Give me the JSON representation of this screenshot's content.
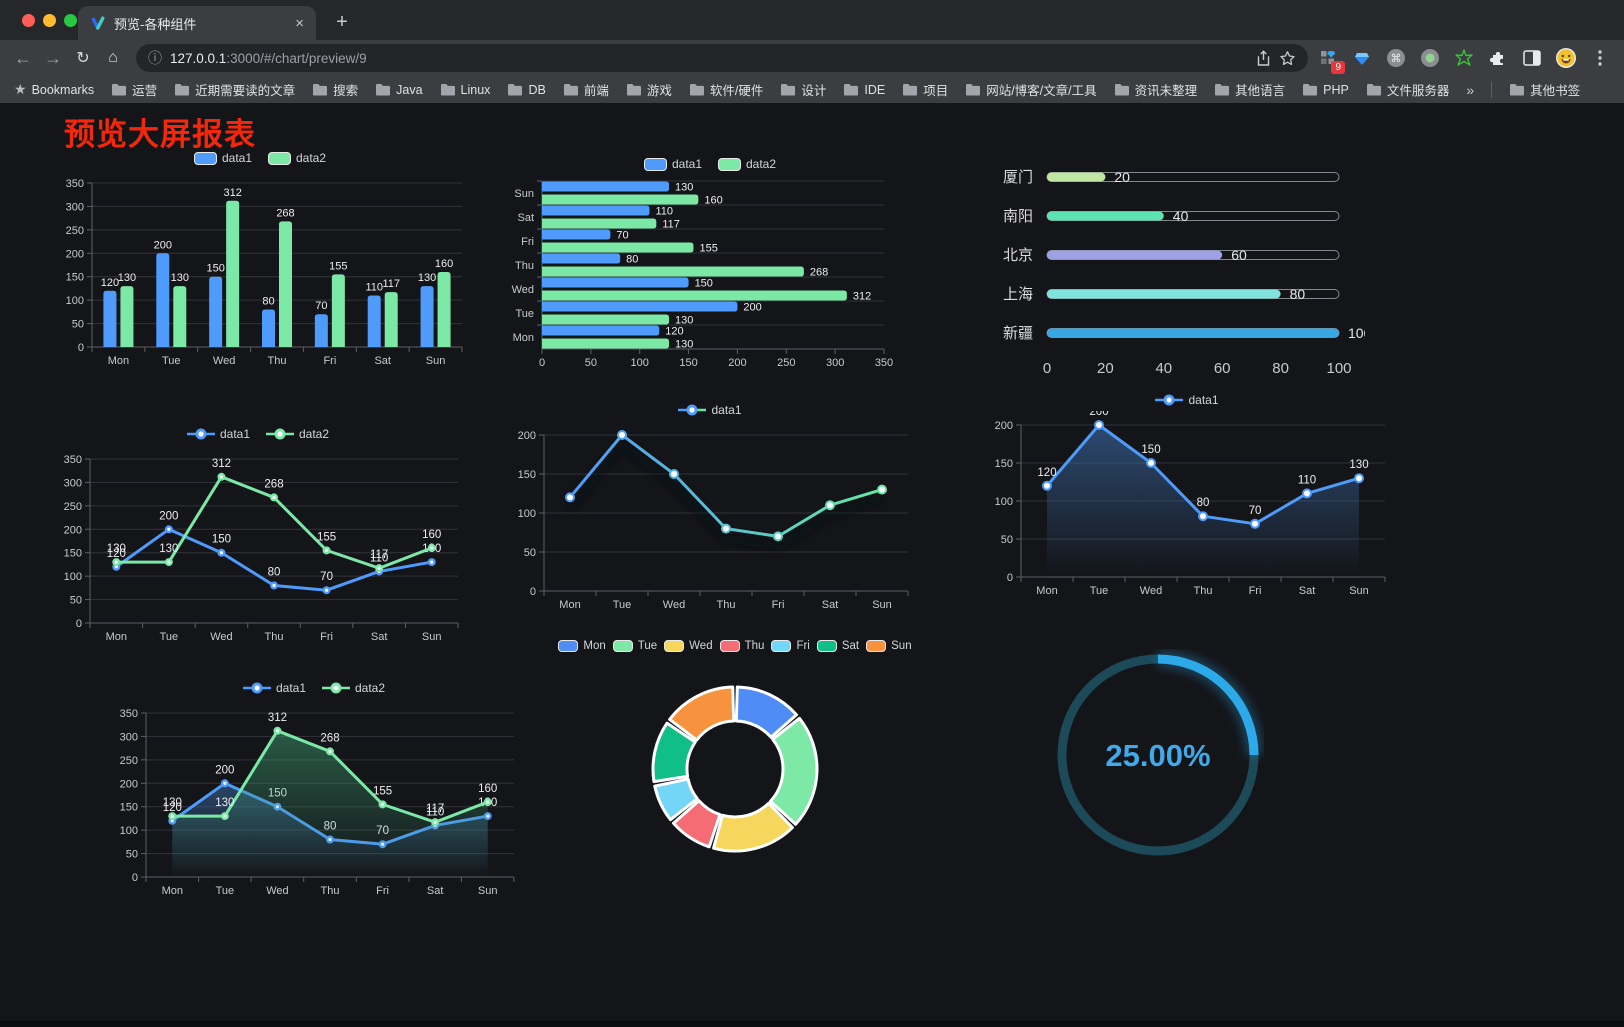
{
  "browser": {
    "tab_title": "预览-各种组件",
    "tab_close_glyph": "×",
    "new_tab_glyph": "+",
    "url_host": "127.0.0.1",
    "url_rest": ":3000/#/chart/preview/9",
    "bookmarks_label": "Bookmarks",
    "bookmarks": [
      "运营",
      "近期需要读的文章",
      "搜索",
      "Java",
      "Linux",
      "DB",
      "前端",
      "游戏",
      "软件/硬件",
      "设计",
      "IDE",
      "项目",
      "网站/博客/文章/工具",
      "资讯未整理",
      "其他语言",
      "PHP",
      "文件服务器"
    ],
    "bookmarks_overflow_glyph": "»",
    "other_bookmarks_label": "其他书签",
    "extension_badge": "9"
  },
  "page": {
    "title": "预览大屏报表",
    "title_color": "#f5270b",
    "background": "#141519"
  },
  "chart_data": [
    {
      "mount": "c1",
      "type": "bar",
      "categories": [
        "Mon",
        "Tue",
        "Wed",
        "Thu",
        "Fri",
        "Sat",
        "Sun"
      ],
      "series": [
        {
          "name": "data1",
          "color": "#4E9BFB",
          "values": [
            120,
            200,
            150,
            80,
            70,
            110,
            130
          ]
        },
        {
          "name": "data2",
          "color": "#7BE8A6",
          "values": [
            130,
            130,
            312,
            268,
            155,
            117,
            160
          ]
        }
      ],
      "ylim": [
        0,
        350
      ],
      "ystep": 50,
      "legend_position": "top",
      "grid": true
    },
    {
      "mount": "c2",
      "type": "hbar",
      "categories": [
        "Mon",
        "Tue",
        "Wed",
        "Thu",
        "Fri",
        "Sat",
        "Sun"
      ],
      "series": [
        {
          "name": "data1",
          "color": "#4E9BFB",
          "values": [
            120,
            200,
            150,
            80,
            70,
            110,
            130
          ]
        },
        {
          "name": "data2",
          "color": "#7BE8A6",
          "values": [
            130,
            130,
            312,
            268,
            155,
            117,
            160
          ]
        }
      ],
      "xlim": [
        0,
        350
      ],
      "xstep": 50,
      "legend_position": "top"
    },
    {
      "mount": "c3",
      "type": "progress",
      "xlim": [
        0,
        100
      ],
      "xticks": [
        0,
        20,
        40,
        60,
        80,
        100
      ],
      "items": [
        {
          "label": "厦门",
          "value": 20,
          "color": "#C0E8A2"
        },
        {
          "label": "南阳",
          "value": 40,
          "color": "#5CE3B1"
        },
        {
          "label": "北京",
          "value": 60,
          "color": "#9EA2E4"
        },
        {
          "label": "上海",
          "value": 80,
          "color": "#81E3DD"
        },
        {
          "label": "新疆",
          "value": 100,
          "color": "#39A8E2"
        }
      ]
    },
    {
      "mount": "c4",
      "type": "line",
      "categories": [
        "Mon",
        "Tue",
        "Wed",
        "Thu",
        "Fri",
        "Sat",
        "Sun"
      ],
      "series": [
        {
          "name": "data1",
          "color": "#4E9BFB",
          "values": [
            120,
            200,
            150,
            80,
            70,
            110,
            130
          ]
        },
        {
          "name": "data2",
          "color": "#7BE8A6",
          "values": [
            130,
            130,
            312,
            268,
            155,
            117,
            160
          ]
        }
      ],
      "ylim": [
        0,
        350
      ],
      "ystep": 50,
      "show_labels": true,
      "marker": "solid"
    },
    {
      "mount": "c5",
      "type": "line",
      "categories": [
        "Mon",
        "Tue",
        "Wed",
        "Thu",
        "Fri",
        "Sat",
        "Sun"
      ],
      "series": [
        {
          "name": "data1",
          "gradient": [
            "#4E9BFB",
            "#65E7A3"
          ],
          "values": [
            120,
            200,
            150,
            80,
            70,
            110,
            130
          ]
        }
      ],
      "ylim": [
        0,
        200
      ],
      "ystep": 50,
      "show_labels": false,
      "marker": "white",
      "shadow": true
    },
    {
      "mount": "c6",
      "type": "line",
      "categories": [
        "Mon",
        "Tue",
        "Wed",
        "Thu",
        "Fri",
        "Sat",
        "Sun"
      ],
      "series": [
        {
          "name": "data1",
          "color": "#4E9BFB",
          "values": [
            120,
            200,
            150,
            80,
            70,
            110,
            130
          ],
          "area": [
            "rgba(60,108,168,0.62)",
            "rgba(60,108,168,0)"
          ]
        }
      ],
      "ylim": [
        0,
        200
      ],
      "ystep": 50,
      "show_labels": true,
      "marker": "white"
    },
    {
      "mount": "c7",
      "type": "line",
      "categories": [
        "Mon",
        "Tue",
        "Wed",
        "Thu",
        "Fri",
        "Sat",
        "Sun"
      ],
      "series": [
        {
          "name": "data1",
          "color": "#4E9BFB",
          "values": [
            120,
            200,
            150,
            80,
            70,
            110,
            130
          ],
          "area": [
            "rgba(60,108,168,0.55)",
            "rgba(60,108,168,0)"
          ]
        },
        {
          "name": "data2",
          "color": "#7BE8A6",
          "values": [
            130,
            130,
            312,
            268,
            155,
            117,
            160
          ],
          "area": [
            "rgba(62,158,114,0.5)",
            "rgba(62,158,114,0)"
          ]
        }
      ],
      "ylim": [
        0,
        350
      ],
      "ystep": 50,
      "show_labels": true,
      "marker": "solid"
    },
    {
      "mount": "c8",
      "type": "pie",
      "items": [
        {
          "label": "Mon",
          "value": 120,
          "color": "#4F8CF6"
        },
        {
          "label": "Tue",
          "value": 200,
          "color": "#7EE8A6"
        },
        {
          "label": "Wed",
          "value": 150,
          "color": "#F6D65C"
        },
        {
          "label": "Thu",
          "value": 80,
          "color": "#F56C74"
        },
        {
          "label": "Fri",
          "value": 70,
          "color": "#74D6F6"
        },
        {
          "label": "Sat",
          "value": 110,
          "color": "#0FBF85"
        },
        {
          "label": "Sun",
          "value": 130,
          "color": "#F7923F"
        }
      ]
    },
    {
      "mount": "c9",
      "type": "gauge",
      "value": 25,
      "label": "25.00%",
      "color": "#2BA9E9",
      "track": "#1C4A59",
      "text_color": "#3FA9E9"
    }
  ]
}
